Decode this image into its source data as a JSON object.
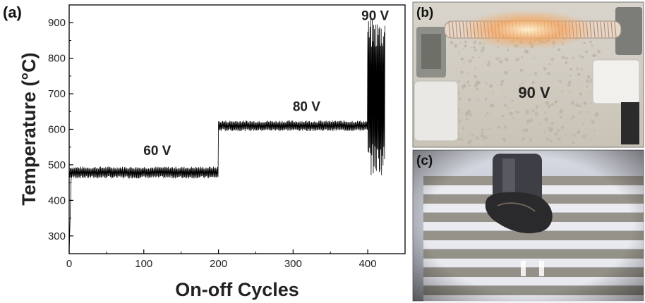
{
  "panels": {
    "a": "(a)",
    "b": "(b)",
    "c": "(c)"
  },
  "photo_b": {
    "annotation": "90 V"
  },
  "chart_data": {
    "type": "line",
    "xlabel": "On-off Cycles",
    "ylabel": "Temperature (°C)",
    "xlim": [
      0,
      450
    ],
    "ylim": [
      250,
      950
    ],
    "x_ticks": [
      0,
      100,
      200,
      300,
      400
    ],
    "y_ticks": [
      300,
      400,
      500,
      600,
      700,
      800,
      900
    ],
    "grid": false,
    "annotations": [
      {
        "text": "60 V",
        "x": 118,
        "y": 528
      },
      {
        "text": "80 V",
        "x": 318,
        "y": 652
      },
      {
        "text": "90 V",
        "x": 410,
        "y": 907
      }
    ],
    "series": [
      {
        "color": "#000000",
        "segments": [
          {
            "x_start": 0,
            "x_end": 200,
            "low": 465,
            "high": 492
          },
          {
            "x_start": 200,
            "x_end": 400,
            "low": 598,
            "high": 622
          },
          {
            "x_start": 400,
            "x_end": 423,
            "low": 515,
            "high": 868
          }
        ],
        "initial_rise": {
          "x": [
            0,
            3
          ],
          "y": [
            250,
            485
          ]
        }
      }
    ]
  }
}
